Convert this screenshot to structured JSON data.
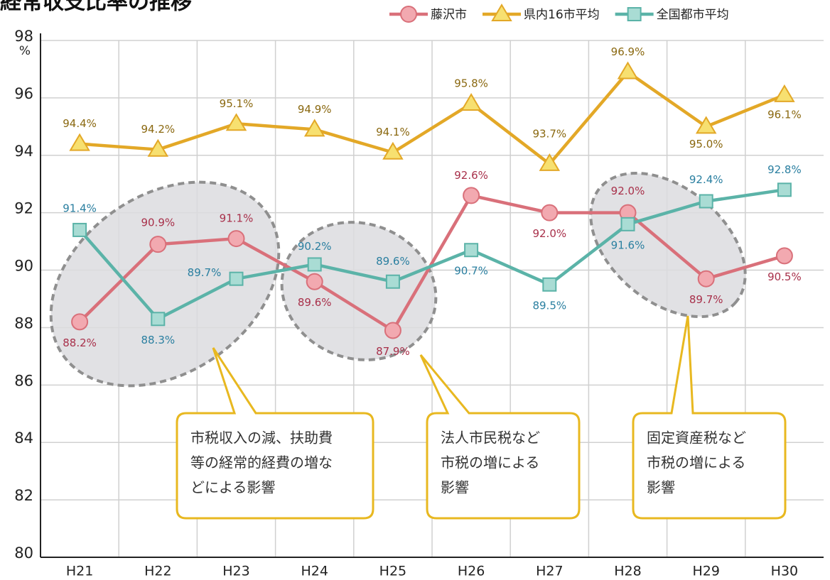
{
  "chart_data": {
    "type": "line",
    "title": "経常収支比率の推移",
    "y_unit": "%",
    "categories": [
      "H21",
      "H22",
      "H23",
      "H24",
      "H25",
      "H26",
      "H27",
      "H28",
      "H29",
      "H30"
    ],
    "series": [
      {
        "name": "藤沢市",
        "color": "#d9707a",
        "marker": "circle",
        "values": [
          88.2,
          90.9,
          91.1,
          89.6,
          87.9,
          92.6,
          92.0,
          92.0,
          89.7,
          90.5
        ],
        "value_labels": [
          "88.2%",
          "90.9%",
          "91.1%",
          "89.6%",
          "87.9%",
          "92.6%",
          "92.0%",
          "92.0%",
          "89.7%",
          "90.5%"
        ]
      },
      {
        "name": "県内16市平均",
        "color": "#e3a827",
        "marker": "triangle",
        "values": [
          94.4,
          94.2,
          95.1,
          94.9,
          94.1,
          95.8,
          93.7,
          96.9,
          95.0,
          96.1
        ],
        "value_labels": [
          "94.4%",
          "94.2%",
          "95.1%",
          "94.9%",
          "94.1%",
          "95.8%",
          "93.7%",
          "96.9%",
          "95.0%",
          "96.1%"
        ]
      },
      {
        "name": "全国都市平均",
        "color": "#5bb3a8",
        "marker": "square",
        "values": [
          91.4,
          88.3,
          89.7,
          90.2,
          89.6,
          90.7,
          89.5,
          91.6,
          92.4,
          92.8
        ],
        "value_labels": [
          "91.4%",
          "88.3%",
          "89.7%",
          "90.2%",
          "89.6%",
          "90.7%",
          "89.5%",
          "91.6%",
          "92.4%",
          "92.8%"
        ]
      }
    ],
    "ylim": [
      80,
      98
    ],
    "yticks": [
      80,
      82,
      84,
      86,
      88,
      90,
      92,
      94,
      96,
      98
    ],
    "grid": true,
    "annotations": [
      {
        "lines": [
          "市税収入の減、扶助費",
          "等の経常的経費の増な",
          "どによる影響"
        ]
      },
      {
        "lines": [
          "法人市民税など",
          "市税の増による",
          "影響"
        ]
      },
      {
        "lines": [
          "固定資産税など",
          "市税の増による",
          "影響"
        ]
      }
    ]
  }
}
